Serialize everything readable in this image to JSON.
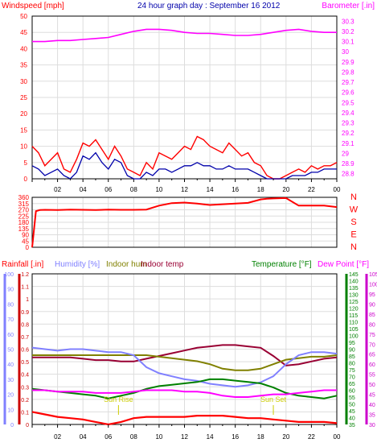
{
  "colors": {
    "wind": "#ff0000",
    "gust_dark": "#0000aa",
    "baro": "#ff00ff",
    "direction": "#ff0000",
    "rain": "#ff0000",
    "humidity": "#8080ff",
    "indoor_hum": "#808000",
    "indoor_temp": "#990033",
    "temperature": "#008000",
    "dewpoint": "#ff00ff",
    "rain_axis": "#cc0000",
    "hum_axis": "#8080ff",
    "temp_axis": "#008000",
    "dew_axis": "#cc00cc",
    "grid": "#dddddd"
  },
  "chart_data": [
    {
      "type": "line",
      "title": "24 hour graph day : September 16 2012",
      "left_axis_label": "Windspeed [mph]",
      "right_axis_label": "Barometer [.in]",
      "left_ticks": [
        "50",
        "45",
        "40",
        "35",
        "30",
        "25",
        "20",
        "15",
        "10",
        "5",
        "0"
      ],
      "right_ticks": [
        "30.3",
        "30.2",
        "30.1",
        "30",
        "29.9",
        "29.8",
        "29.7",
        "29.6",
        "29.5",
        "29.4",
        "29.3",
        "29.2",
        "29.1",
        "29",
        "28.9",
        "28.8"
      ],
      "x_ticks": [
        "02",
        "04",
        "06",
        "08",
        "10",
        "12",
        "14",
        "16",
        "18",
        "20",
        "22",
        "00"
      ],
      "xlim": [
        0,
        24
      ],
      "ylim_left": [
        0,
        50
      ],
      "ylim_right": [
        28.75,
        30.35
      ],
      "series": [
        {
          "key": "baro",
          "axis": "right",
          "x": [
            0,
            1,
            2,
            3,
            4,
            5,
            6,
            7,
            8,
            9,
            10,
            11,
            12,
            13,
            14,
            15,
            16,
            17,
            18,
            19,
            20,
            21,
            22,
            23,
            24
          ],
          "y": [
            30.1,
            30.1,
            30.11,
            30.11,
            30.12,
            30.13,
            30.14,
            30.17,
            30.2,
            30.22,
            30.22,
            30.21,
            30.19,
            30.18,
            30.18,
            30.17,
            30.16,
            30.16,
            30.17,
            30.19,
            30.21,
            30.22,
            30.2,
            30.19,
            30.19
          ]
        },
        {
          "key": "wind_gust",
          "axis": "left",
          "x": [
            0,
            0.5,
            1,
            1.5,
            2,
            2.5,
            3,
            3.5,
            4,
            4.5,
            5,
            5.5,
            6,
            6.5,
            7,
            7.5,
            8,
            8.5,
            9,
            9.5,
            10,
            10.5,
            11,
            11.5,
            12,
            12.5,
            13,
            13.5,
            14,
            14.5,
            15,
            15.5,
            16,
            16.5,
            17,
            17.5,
            18,
            18.5,
            19,
            19.5,
            20,
            20.5,
            21,
            21.5,
            22,
            22.5,
            23,
            23.5,
            24
          ],
          "y": [
            10,
            8,
            4,
            6,
            8,
            3,
            2,
            6,
            11,
            10,
            12,
            9,
            6,
            10,
            7,
            3,
            2,
            1,
            5,
            3,
            8,
            7,
            6,
            8,
            10,
            9,
            13,
            12,
            10,
            9,
            8,
            11,
            9,
            7,
            8,
            5,
            4,
            1,
            0,
            0,
            1,
            2,
            3,
            2,
            4,
            3,
            4,
            4,
            5
          ]
        },
        {
          "key": "wind_avg",
          "axis": "left",
          "x": [
            0,
            0.5,
            1,
            1.5,
            2,
            2.5,
            3,
            3.5,
            4,
            4.5,
            5,
            5.5,
            6,
            6.5,
            7,
            7.5,
            8,
            8.5,
            9,
            9.5,
            10,
            10.5,
            11,
            11.5,
            12,
            12.5,
            13,
            13.5,
            14,
            14.5,
            15,
            15.5,
            16,
            16.5,
            17,
            17.5,
            18,
            18.5,
            19,
            19.5,
            20,
            20.5,
            21,
            21.5,
            22,
            22.5,
            23,
            23.5,
            24
          ],
          "y": [
            4,
            3,
            1,
            2,
            3,
            1,
            0,
            2,
            7,
            6,
            8,
            5,
            3,
            6,
            5,
            1,
            0,
            0,
            2,
            1,
            3,
            3,
            2,
            3,
            4,
            4,
            5,
            4,
            4,
            3,
            3,
            4,
            3,
            3,
            3,
            2,
            1,
            0,
            0,
            0,
            0,
            1,
            1,
            1,
            2,
            2,
            3,
            3,
            3
          ]
        }
      ]
    },
    {
      "type": "line",
      "title": "",
      "left_ticks": [
        "360",
        "315",
        "270",
        "225",
        "180",
        "135",
        "90",
        "45",
        "0"
      ],
      "right_ticks": [
        "N",
        "W",
        "S",
        "E",
        "N"
      ],
      "ylim": [
        0,
        360
      ],
      "series": [
        {
          "key": "direction",
          "x": [
            0,
            0.3,
            0.6,
            1,
            2,
            3,
            4,
            5,
            6,
            7,
            8,
            9,
            10,
            11,
            12,
            13,
            14,
            15,
            16,
            17,
            18,
            18.5,
            19,
            20,
            21,
            22,
            23,
            24
          ],
          "y": [
            0,
            260,
            268,
            270,
            268,
            272,
            270,
            268,
            272,
            270,
            270,
            272,
            300,
            318,
            322,
            315,
            305,
            310,
            315,
            320,
            345,
            350,
            352,
            355,
            300,
            300,
            300,
            290
          ]
        }
      ]
    },
    {
      "type": "line",
      "title": "",
      "legend": [
        "Rainfall [.in]",
        "Humidity [%]",
        "Indoor hum",
        "Indoor temp",
        "Temperature [°F]",
        "Dew Point [°F]"
      ],
      "rain_ticks": [
        "1.2",
        "1.1",
        "1",
        "0.9",
        "0.8",
        "0.7",
        "0.6",
        "0.5",
        "0.4",
        "0.3",
        "0.2",
        "0.1",
        "0"
      ],
      "hum_ticks": [
        "100",
        "90",
        "80",
        "70",
        "60",
        "50",
        "40",
        "30",
        "20",
        "10",
        "0"
      ],
      "temp_ticks": [
        "145",
        "140",
        "135",
        "130",
        "125",
        "120",
        "115",
        "110",
        "105",
        "100",
        "95",
        "90",
        "85",
        "80",
        "75",
        "70",
        "65",
        "60",
        "55",
        "50",
        "45",
        "40",
        "35"
      ],
      "dew_ticks": [
        "105",
        "100",
        "95",
        "90",
        "85",
        "80",
        "75",
        "70",
        "65",
        "60",
        "55",
        "50",
        "45",
        "40",
        "35",
        "30"
      ],
      "ylim_rain": [
        0,
        1.2
      ],
      "ylim_hum": [
        0,
        100
      ],
      "ylim_temp": [
        35,
        145
      ],
      "annotations": [
        {
          "label": "Sun Rise",
          "x": 6.8
        },
        {
          "label": "Sun Set",
          "x": 19.0
        }
      ],
      "series": [
        {
          "key": "indoor_temp",
          "axis": "temp",
          "x": [
            0,
            1,
            2,
            3,
            4,
            5,
            6,
            7,
            8,
            9,
            10,
            11,
            12,
            13,
            14,
            15,
            16,
            17,
            18,
            19,
            20,
            21,
            22,
            23,
            24
          ],
          "y": [
            84,
            84,
            84,
            84,
            83,
            82,
            82,
            81,
            81,
            83,
            85,
            87,
            89,
            91,
            92,
            93,
            93,
            92,
            91,
            85,
            78,
            79,
            81,
            83,
            84
          ]
        },
        {
          "key": "indoor_hum",
          "axis": "hum",
          "x": [
            0,
            1,
            2,
            3,
            4,
            5,
            6,
            7,
            8,
            9,
            10,
            11,
            12,
            13,
            14,
            15,
            16,
            17,
            18,
            19,
            20,
            21,
            22,
            23,
            24
          ],
          "y": [
            46,
            46,
            46,
            46,
            46,
            46,
            46,
            46,
            46,
            46,
            45,
            44,
            43,
            42,
            40,
            37,
            36,
            36,
            37,
            40,
            43,
            44,
            45,
            45,
            46
          ]
        },
        {
          "key": "humidity",
          "axis": "hum",
          "x": [
            0,
            1,
            2,
            3,
            4,
            5,
            6,
            7,
            8,
            9,
            10,
            11,
            12,
            13,
            14,
            15,
            16,
            17,
            18,
            19,
            20,
            21,
            22,
            23,
            24
          ],
          "y": [
            51,
            50,
            49,
            50,
            50,
            49,
            48,
            48,
            46,
            38,
            34,
            32,
            30,
            29,
            27,
            26,
            25,
            26,
            28,
            32,
            40,
            46,
            48,
            48,
            47
          ]
        },
        {
          "key": "temperature",
          "axis": "temp",
          "x": [
            0,
            1,
            2,
            3,
            4,
            5,
            6,
            7,
            8,
            9,
            10,
            11,
            12,
            13,
            14,
            15,
            16,
            17,
            18,
            19,
            20,
            21,
            22,
            23,
            24
          ],
          "y": [
            61,
            60,
            59,
            58,
            57,
            56,
            54,
            56,
            58,
            61,
            63,
            64,
            65,
            66,
            68,
            68,
            67,
            66,
            65,
            62,
            58,
            56,
            55,
            54,
            56
          ]
        },
        {
          "key": "dewpoint",
          "axis": "temp",
          "x": [
            0,
            1,
            2,
            3,
            4,
            5,
            6,
            7,
            8,
            9,
            10,
            11,
            12,
            13,
            14,
            15,
            16,
            17,
            18,
            19,
            20,
            21,
            22,
            23,
            24
          ],
          "y": [
            60,
            60,
            59,
            59,
            59,
            58,
            58,
            58,
            59,
            60,
            60,
            60,
            59,
            59,
            58,
            56,
            55,
            55,
            56,
            57,
            57,
            58,
            59,
            60,
            60
          ]
        },
        {
          "key": "rain",
          "axis": "rain",
          "x": [
            0,
            1,
            2,
            3,
            4,
            5,
            6,
            7,
            8,
            9,
            10,
            11,
            12,
            13,
            14,
            15,
            16,
            17,
            18,
            19,
            20,
            21,
            22,
            23,
            24
          ],
          "y": [
            0.1,
            0.08,
            0.06,
            0.05,
            0.04,
            0.02,
            0.0,
            0.02,
            0.05,
            0.06,
            0.06,
            0.06,
            0.06,
            0.07,
            0.07,
            0.07,
            0.06,
            0.05,
            0.05,
            0.04,
            0.03,
            0.02,
            0.02,
            0.02,
            0.01
          ]
        }
      ]
    }
  ]
}
